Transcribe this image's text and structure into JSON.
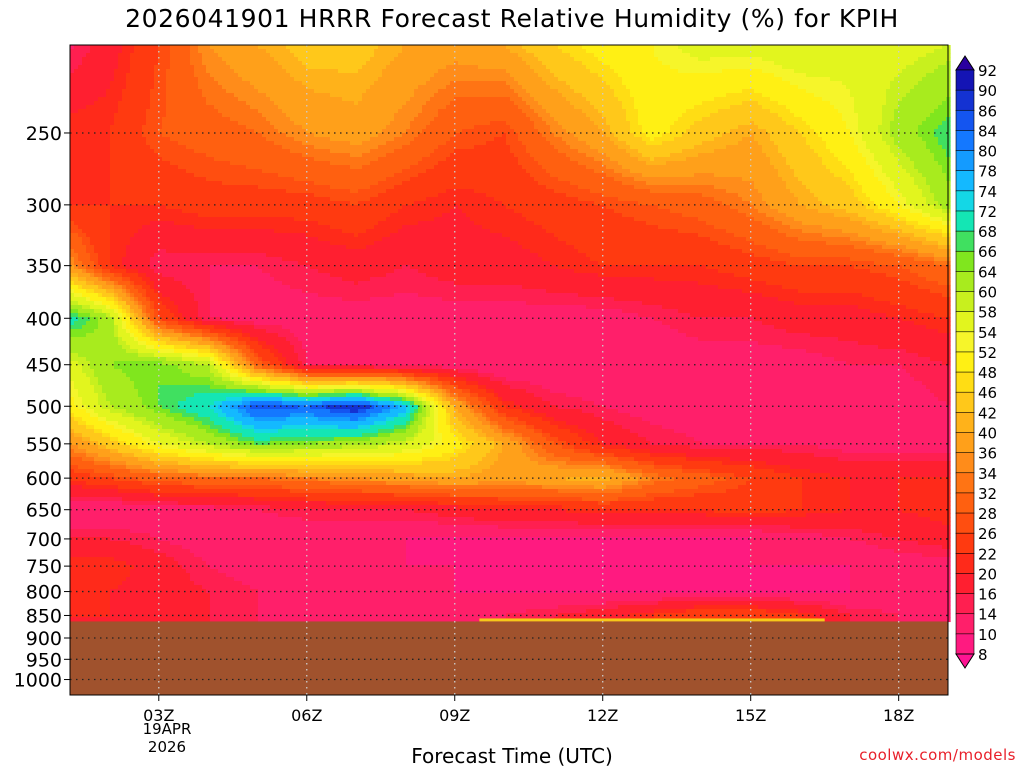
{
  "page": {
    "title": "2026041901 HRRR Forecast Relative Humidity (%) for KPIH",
    "xlabel": "Forecast Time (UTC)",
    "watermark": "coolwx.com/models",
    "date_line1": "19APR",
    "date_line2": "2026"
  },
  "chart_data": {
    "type": "heatmap",
    "title": "2026041901 HRRR Forecast Relative Humidity (%) for KPIH",
    "xlabel": "Forecast Time (UTC)",
    "ylabel": "",
    "x_ticks": [
      "03Z",
      "06Z",
      "09Z",
      "12Z",
      "15Z",
      "18Z"
    ],
    "x_tick_hours": [
      3,
      6,
      9,
      12,
      15,
      18
    ],
    "xlim": [
      1.2,
      19.0
    ],
    "y_ticks": [
      250,
      300,
      350,
      400,
      450,
      500,
      550,
      600,
      650,
      700,
      750,
      800,
      850,
      900,
      950,
      1000
    ],
    "ylim": [
      200,
      1040
    ],
    "y_scale": "log",
    "y_reversed": true,
    "grid": true,
    "colorbar": {
      "placement": "right",
      "levels": [
        8,
        10,
        14,
        16,
        20,
        22,
        26,
        28,
        32,
        34,
        36,
        40,
        42,
        46,
        48,
        52,
        54,
        58,
        60,
        64,
        66,
        68,
        72,
        74,
        78,
        80,
        84,
        86,
        90,
        92
      ],
      "colors": [
        "#ff1493",
        "#ff1a80",
        "#ff1f6a",
        "#ff1f50",
        "#ff1f30",
        "#ff2a1a",
        "#ff3a10",
        "#ff4e10",
        "#ff6010",
        "#ff7414",
        "#ff8c1a",
        "#ffa01a",
        "#ffb21a",
        "#ffc81a",
        "#ffdd14",
        "#fff014",
        "#f6f52a",
        "#e2f51e",
        "#c8f01e",
        "#a8eb1e",
        "#80e61e",
        "#40e060",
        "#14e6b4",
        "#14d7e6",
        "#14b9ff",
        "#149bff",
        "#1478ff",
        "#1455f0",
        "#1432d2",
        "#1414b4",
        "#2a00a0"
      ]
    },
    "terrain_pressure": 863,
    "terrain_color": "#a0522d",
    "field_levels_hpa": [
      200,
      250,
      300,
      350,
      400,
      450,
      500,
      550,
      600,
      650,
      700,
      750,
      800,
      850
    ],
    "field_hours": [
      1,
      2,
      3,
      4,
      5,
      6,
      7,
      8,
      9,
      10,
      11,
      12,
      13,
      14,
      15,
      16,
      17,
      18,
      19
    ],
    "field_values": [
      [
        12,
        18,
        26,
        36,
        40,
        44,
        44,
        40,
        38,
        40,
        46,
        50,
        52,
        56,
        56,
        58,
        56,
        56,
        58
      ],
      [
        22,
        22,
        28,
        30,
        32,
        36,
        38,
        34,
        28,
        26,
        34,
        40,
        50,
        44,
        40,
        46,
        52,
        62,
        68
      ],
      [
        22,
        22,
        22,
        24,
        24,
        24,
        26,
        22,
        20,
        22,
        24,
        26,
        28,
        30,
        34,
        40,
        44,
        52,
        62
      ],
      [
        40,
        22,
        14,
        14,
        14,
        16,
        18,
        16,
        18,
        18,
        20,
        22,
        22,
        22,
        24,
        26,
        26,
        28,
        32
      ],
      [
        72,
        62,
        26,
        14,
        12,
        12,
        12,
        12,
        12,
        12,
        12,
        12,
        14,
        16,
        16,
        18,
        18,
        20,
        22
      ],
      [
        54,
        64,
        66,
        60,
        30,
        14,
        12,
        12,
        12,
        10,
        10,
        10,
        10,
        12,
        12,
        12,
        14,
        14,
        16
      ],
      [
        48,
        60,
        66,
        72,
        86,
        84,
        90,
        76,
        40,
        22,
        16,
        14,
        12,
        12,
        12,
        12,
        12,
        12,
        14
      ],
      [
        34,
        44,
        54,
        60,
        66,
        64,
        62,
        58,
        50,
        40,
        28,
        20,
        16,
        14,
        14,
        14,
        12,
        12,
        12
      ],
      [
        22,
        26,
        30,
        32,
        32,
        34,
        36,
        38,
        40,
        38,
        40,
        42,
        34,
        30,
        26,
        22,
        20,
        20,
        20
      ],
      [
        10,
        10,
        12,
        12,
        14,
        16,
        16,
        16,
        18,
        20,
        20,
        22,
        22,
        22,
        24,
        22,
        20,
        20,
        22
      ],
      [
        16,
        16,
        14,
        12,
        10,
        10,
        10,
        10,
        10,
        10,
        10,
        10,
        10,
        10,
        10,
        12,
        14,
        16,
        18
      ],
      [
        22,
        22,
        18,
        14,
        12,
        12,
        12,
        10,
        10,
        10,
        10,
        10,
        10,
        10,
        10,
        10,
        10,
        12,
        12
      ],
      [
        22,
        20,
        18,
        16,
        14,
        12,
        12,
        12,
        10,
        10,
        10,
        10,
        10,
        10,
        10,
        10,
        10,
        12,
        12
      ],
      [
        20,
        20,
        18,
        16,
        14,
        14,
        12,
        12,
        14,
        14,
        16,
        18,
        22,
        26,
        26,
        22,
        16,
        14,
        12
      ]
    ]
  }
}
